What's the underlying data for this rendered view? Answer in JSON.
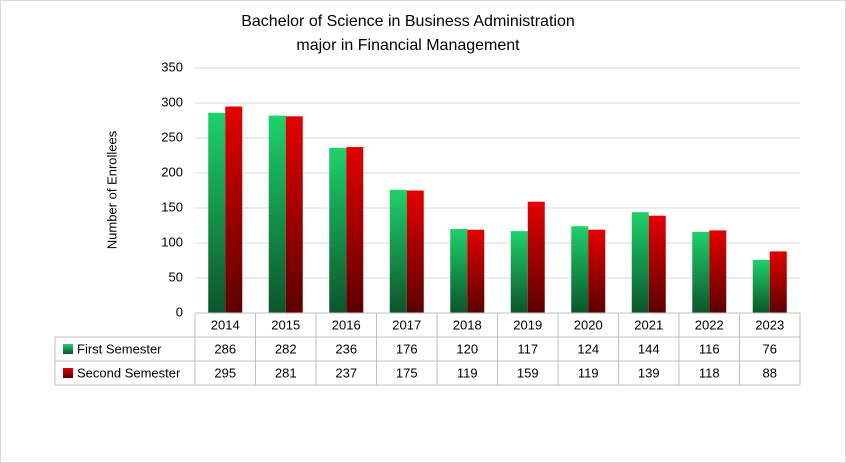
{
  "chart_data": {
    "type": "bar",
    "title": [
      "Bachelor of Science in Business Administration",
      "major in Financial Management"
    ],
    "y_label": "Number of Enrollees",
    "categories": [
      "2014",
      "2015",
      "2016",
      "2017",
      "2018",
      "2019",
      "2020",
      "2021",
      "2022",
      "2023"
    ],
    "series": [
      {
        "name": "First Semester",
        "color": "#1fd16c",
        "values": [
          286,
          282,
          236,
          176,
          120,
          117,
          124,
          144,
          116,
          76
        ]
      },
      {
        "name": "Second Semester",
        "color": "#e40000",
        "values": [
          295,
          281,
          237,
          175,
          119,
          159,
          119,
          139,
          118,
          88
        ]
      }
    ],
    "ylim": [
      0,
      350
    ],
    "yticks": [
      0,
      50,
      100,
      150,
      200,
      250,
      300,
      350
    ],
    "grid": true,
    "data_table": true
  }
}
